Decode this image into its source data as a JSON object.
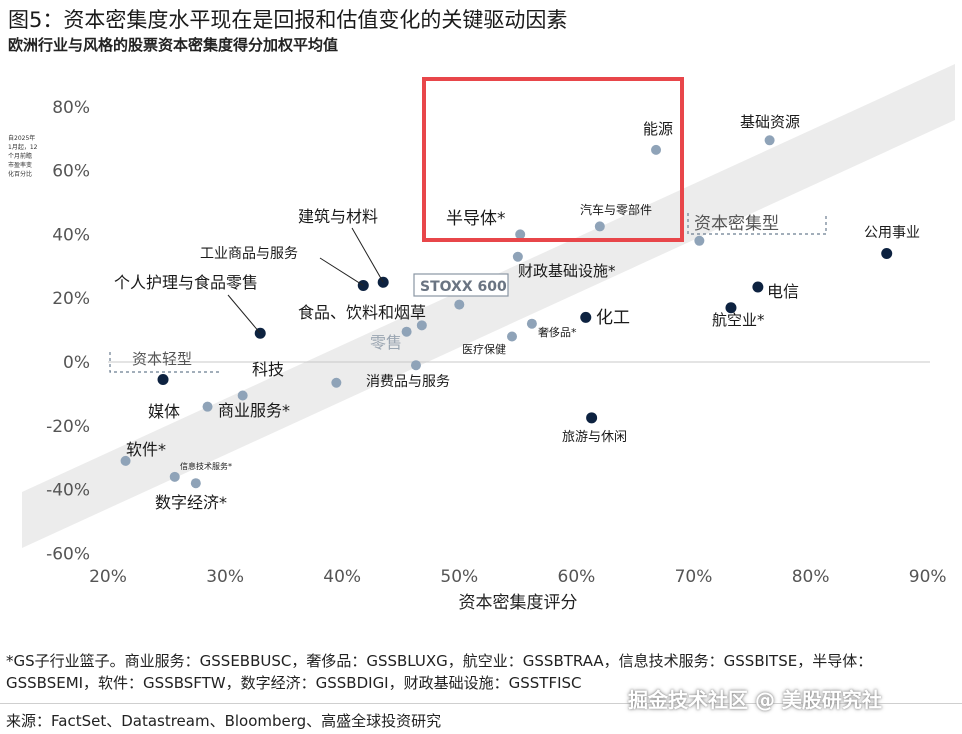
{
  "title": "图5：资本密集度水平现在是回报和估值变化的关键驱动因素",
  "subtitle": "欧洲行业与风格的股票资本密集度得分加权平均值",
  "footnote": "*GS子行业篮子。商业服务：GSSEBBUSC，奢侈品：GSSBLUXG，航空业：GSSBTRAA，信息技术服务：GSSBITSE，半导体：GSSBSEMI，软件：GSSBSFTW，数字经济：GSSBDIGI，财政基础设施：GSSTFISC",
  "source": "来源：FactSet、Datastream、Bloomberg、高盛全球投资研究",
  "watermark": "掘金技术社区 @ 美股研究社",
  "colors": {
    "dark_point": "#0d2240",
    "light_point": "#8fa3b8",
    "band": "#ececec",
    "highlight_box": "#e8464a"
  },
  "chart_data": {
    "type": "scatter",
    "xlabel": "资本密集度评分",
    "ylabel": "自2025年1月起，12个月前瞻市盈率变化百分比",
    "x_ticks": [
      "20%",
      "30%",
      "40%",
      "50%",
      "60%",
      "70%",
      "80%",
      "90%"
    ],
    "y_ticks": [
      "80%",
      "60%",
      "40%",
      "20%",
      "0%",
      "-20%",
      "-40%",
      "-60%"
    ],
    "xlim": [
      20,
      90
    ],
    "ylim": [
      -60,
      80
    ],
    "points": [
      {
        "label": "能源",
        "x": 66.8,
        "y": 66.5,
        "style": "light"
      },
      {
        "label": "基础资源",
        "x": 76.5,
        "y": 69.5,
        "style": "light"
      },
      {
        "label": "半导体*",
        "x": 55.2,
        "y": 40,
        "style": "light"
      },
      {
        "label": "汽车与零部件",
        "x": 62,
        "y": 42.5,
        "style": "light"
      },
      {
        "label": "资本密集型",
        "x": 70.5,
        "y": 38,
        "style": "light"
      },
      {
        "label": "公用事业",
        "x": 86.5,
        "y": 34,
        "style": "dark"
      },
      {
        "label": "建筑与材料",
        "x": 43.5,
        "y": 25,
        "style": "dark"
      },
      {
        "label": "工业商品与服务",
        "x": 41.8,
        "y": 24,
        "style": "dark"
      },
      {
        "label": "财政基础设施*",
        "x": 55,
        "y": 33,
        "style": "light"
      },
      {
        "label": "个人护理与食品零售",
        "x": 33,
        "y": 9,
        "style": "dark"
      },
      {
        "label": "STOXX 600",
        "x": 50,
        "y": 18,
        "style": "light"
      },
      {
        "label": "食品、饮料和烟草",
        "x": 46.8,
        "y": 11.5,
        "style": "light"
      },
      {
        "label": "零售",
        "x": 45.5,
        "y": 9.5,
        "style": "light"
      },
      {
        "label": "奢侈品*",
        "x": 56.2,
        "y": 12,
        "style": "light"
      },
      {
        "label": "化工",
        "x": 60.8,
        "y": 14,
        "style": "dark"
      },
      {
        "label": "医疗保健",
        "x": 54.5,
        "y": 8,
        "style": "light"
      },
      {
        "label": "电信",
        "x": 75.5,
        "y": 23.5,
        "style": "dark"
      },
      {
        "label": "航空业*",
        "x": 73.2,
        "y": 17,
        "style": "dark"
      },
      {
        "label": "消费品与服务",
        "x": 46.3,
        "y": -1,
        "style": "light"
      },
      {
        "label": "资本轻型",
        "x": 24.7,
        "y": -5.5,
        "style": "dark"
      },
      {
        "label": "科技",
        "x": 39.5,
        "y": -6.5,
        "style": "light"
      },
      {
        "label": "媒体",
        "x": 28.5,
        "y": -14,
        "style": "light"
      },
      {
        "label": "商业服务*",
        "x": 31.5,
        "y": -10.5,
        "style": "light"
      },
      {
        "label": "旅游与休闲",
        "x": 61.3,
        "y": -17.5,
        "style": "dark"
      },
      {
        "label": "软件*",
        "x": 21.5,
        "y": -31,
        "style": "light"
      },
      {
        "label": "信息技术服务*",
        "x": 25.7,
        "y": -36,
        "style": "light"
      },
      {
        "label": "数字经济*",
        "x": 27.5,
        "y": -38,
        "style": "light"
      }
    ]
  }
}
